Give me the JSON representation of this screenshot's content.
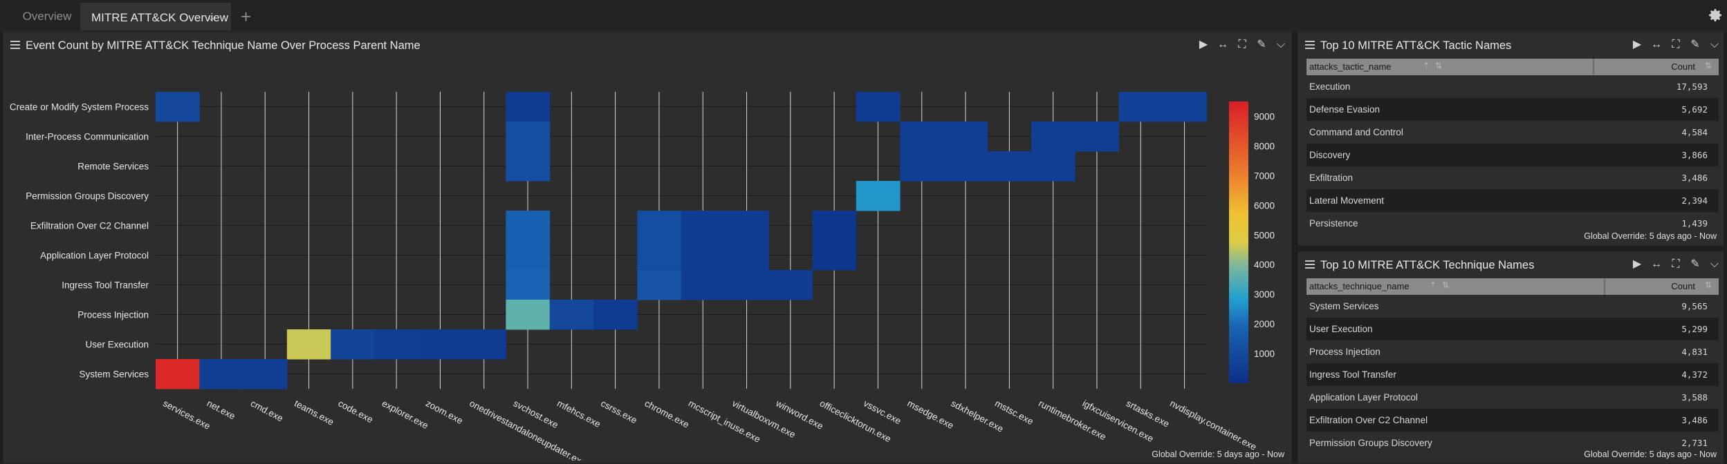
{
  "tabs": [
    {
      "label": "Overview"
    },
    {
      "label": "MITRE ATT&CK Overview"
    }
  ],
  "main_panel": {
    "title": "Event Count by MITRE ATT&CK Technique Name Over Process Parent Name",
    "override": "Global Override: 5 days ago - Now"
  },
  "tactic_panel": {
    "title": "Top 10 MITRE ATT&CK Tactic Names",
    "col_name": "attacks_tactic_name",
    "col_count": "Count",
    "override": "Global Override: 5 days ago - Now",
    "rows": [
      {
        "name": "Execution",
        "count": "17,593"
      },
      {
        "name": "Defense Evasion",
        "count": "5,692"
      },
      {
        "name": "Command and Control",
        "count": "4,584"
      },
      {
        "name": "Discovery",
        "count": "3,866"
      },
      {
        "name": "Exfiltration",
        "count": "3,486"
      },
      {
        "name": "Lateral Movement",
        "count": "2,394"
      },
      {
        "name": "Persistence",
        "count": "1,439"
      }
    ]
  },
  "technique_panel": {
    "title": "Top 10 MITRE ATT&CK Technique Names",
    "col_name": "attacks_technique_name",
    "col_count": "Count",
    "override": "Global Override: 5 days ago - Now",
    "rows": [
      {
        "name": "System Services",
        "count": "9,565"
      },
      {
        "name": "User Execution",
        "count": "5,299"
      },
      {
        "name": "Process Injection",
        "count": "4,831"
      },
      {
        "name": "Ingress Tool Transfer",
        "count": "4,372"
      },
      {
        "name": "Application Layer Protocol",
        "count": "3,588"
      },
      {
        "name": "Exfiltration Over C2 Channel",
        "count": "3,486"
      },
      {
        "name": "Permission Groups Discovery",
        "count": "2,731"
      }
    ]
  },
  "chart_data": {
    "type": "heatmap",
    "y_categories": [
      "Create or Modify System Process",
      "Inter-Process Communication",
      "Remote Services",
      "Permission Groups Discovery",
      "Exfiltration Over C2 Channel",
      "Application Layer Protocol",
      "Ingress Tool Transfer",
      "Process Injection",
      "User Execution",
      "System Services"
    ],
    "x_categories": [
      "services.exe",
      "net.exe",
      "cmd.exe",
      "teams.exe",
      "code.exe",
      "explorer.exe",
      "zoom.exe",
      "onedrivestandaloneupdater.exe",
      "svchost.exe",
      "mfehcs.exe",
      "csrss.exe",
      "chrome.exe",
      "mcscript_inuse.exe",
      "virtualboxvm.exe",
      "winword.exe",
      "officeclicktorun.exe",
      "vssvc.exe",
      "msedge.exe",
      "sdxhelper.exe",
      "mstsc.exe",
      "runtimebroker.exe",
      "igfxcuiservicen.exe",
      "srtasks.exe",
      "nvdisplay.container.exe"
    ],
    "colorbar_ticks": [
      1000,
      2000,
      3000,
      4000,
      5000,
      6000,
      7000,
      8000,
      9000
    ],
    "color_range": [
      0,
      9500
    ],
    "cells": [
      {
        "x": "services.exe",
        "y": "Create or Modify System Process",
        "value": 900
      },
      {
        "x": "svchost.exe",
        "y": "Create or Modify System Process",
        "value": 450
      },
      {
        "x": "vssvc.exe",
        "y": "Create or Modify System Process",
        "value": 450
      },
      {
        "x": "srtasks.exe",
        "y": "Create or Modify System Process",
        "value": 700
      },
      {
        "x": "nvdisplay.container.exe",
        "y": "Create or Modify System Process",
        "value": 700
      },
      {
        "x": "svchost.exe",
        "y": "Inter-Process Communication",
        "value": 1150
      },
      {
        "x": "msedge.exe",
        "y": "Inter-Process Communication",
        "value": 550
      },
      {
        "x": "sdxhelper.exe",
        "y": "Inter-Process Communication",
        "value": 550
      },
      {
        "x": "runtimebroker.exe",
        "y": "Inter-Process Communication",
        "value": 550
      },
      {
        "x": "igfxcuiservicen.exe",
        "y": "Inter-Process Communication",
        "value": 550
      },
      {
        "x": "svchost.exe",
        "y": "Remote Services",
        "value": 1150
      },
      {
        "x": "msedge.exe",
        "y": "Remote Services",
        "value": 550
      },
      {
        "x": "sdxhelper.exe",
        "y": "Remote Services",
        "value": 550
      },
      {
        "x": "mstsc.exe",
        "y": "Remote Services",
        "value": 550
      },
      {
        "x": "runtimebroker.exe",
        "y": "Remote Services",
        "value": 550
      },
      {
        "x": "vssvc.exe",
        "y": "Permission Groups Discovery",
        "value": 2700
      },
      {
        "x": "svchost.exe",
        "y": "Exfiltration Over C2 Channel",
        "value": 1750
      },
      {
        "x": "chrome.exe",
        "y": "Exfiltration Over C2 Channel",
        "value": 1100
      },
      {
        "x": "mcscript_inuse.exe",
        "y": "Exfiltration Over C2 Channel",
        "value": 450
      },
      {
        "x": "virtualboxvm.exe",
        "y": "Exfiltration Over C2 Channel",
        "value": 450
      },
      {
        "x": "officeclicktorun.exe",
        "y": "Exfiltration Over C2 Channel",
        "value": 250
      },
      {
        "x": "svchost.exe",
        "y": "Application Layer Protocol",
        "value": 1750
      },
      {
        "x": "chrome.exe",
        "y": "Application Layer Protocol",
        "value": 1100
      },
      {
        "x": "mcscript_inuse.exe",
        "y": "Application Layer Protocol",
        "value": 450
      },
      {
        "x": "virtualboxvm.exe",
        "y": "Application Layer Protocol",
        "value": 450
      },
      {
        "x": "officeclicktorun.exe",
        "y": "Application Layer Protocol",
        "value": 250
      },
      {
        "x": "svchost.exe",
        "y": "Ingress Tool Transfer",
        "value": 1850
      },
      {
        "x": "chrome.exe",
        "y": "Ingress Tool Transfer",
        "value": 1350
      },
      {
        "x": "mcscript_inuse.exe",
        "y": "Ingress Tool Transfer",
        "value": 450
      },
      {
        "x": "virtualboxvm.exe",
        "y": "Ingress Tool Transfer",
        "value": 450
      },
      {
        "x": "winword.exe",
        "y": "Ingress Tool Transfer",
        "value": 450
      },
      {
        "x": "svchost.exe",
        "y": "Process Injection",
        "value": 3600
      },
      {
        "x": "mfehcs.exe",
        "y": "Process Injection",
        "value": 900
      },
      {
        "x": "csrss.exe",
        "y": "Process Injection",
        "value": 450
      },
      {
        "x": "teams.exe",
        "y": "User Execution",
        "value": 4600
      },
      {
        "x": "code.exe",
        "y": "User Execution",
        "value": 750
      },
      {
        "x": "explorer.exe",
        "y": "User Execution",
        "value": 550
      },
      {
        "x": "zoom.exe",
        "y": "User Execution",
        "value": 450
      },
      {
        "x": "onedrivestandaloneupdater.exe",
        "y": "User Execution",
        "value": 450
      },
      {
        "x": "services.exe",
        "y": "System Services",
        "value": 9200
      },
      {
        "x": "net.exe",
        "y": "System Services",
        "value": 550
      },
      {
        "x": "cmd.exe",
        "y": "System Services",
        "value": 550
      }
    ]
  }
}
